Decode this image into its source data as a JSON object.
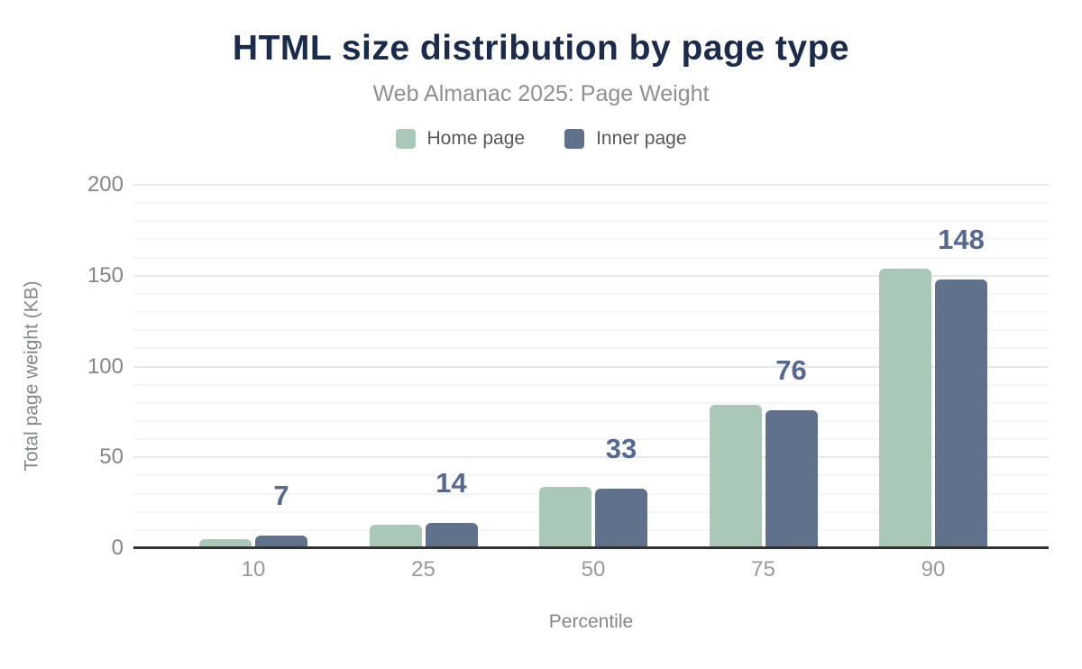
{
  "chart": {
    "title": "HTML size distribution by page type",
    "subtitle": "Web Almanac 2025: Page Weight"
  },
  "chart_data": {
    "type": "bar",
    "title": "HTML size distribution by page type",
    "subtitle": "Web Almanac 2025: Page Weight",
    "xlabel": "Percentile",
    "ylabel": "Total page weight (KB)",
    "categories": [
      "10",
      "25",
      "50",
      "75",
      "90"
    ],
    "series": [
      {
        "name": "Home page",
        "color": "#a9c8b8",
        "values": [
          5,
          13,
          34,
          79,
          154
        ]
      },
      {
        "name": "Inner page",
        "color": "#60718c",
        "values": [
          7,
          14,
          33,
          76,
          148
        ]
      }
    ],
    "data_labels": {
      "series": "Inner page",
      "values": [
        "7",
        "14",
        "33",
        "76",
        "148"
      ],
      "color": "#55688f"
    },
    "ylim": [
      0,
      200
    ],
    "yticks": [
      "0",
      "50",
      "100",
      "150",
      "200"
    ],
    "minor_grid_step": 10,
    "major_grid_step": 50,
    "grid": true,
    "legend_position": "top"
  },
  "colors": {
    "background": "#ffffff",
    "title": "#1b2b4b",
    "subtitle": "#8e9092",
    "home_bar": "#a9c8b8",
    "inner_bar": "#60718c",
    "data_label": "#55688f",
    "axis_line": "#333333",
    "major_gridline": "#e9e9e9",
    "minor_gridline": "#f5f5f5"
  }
}
